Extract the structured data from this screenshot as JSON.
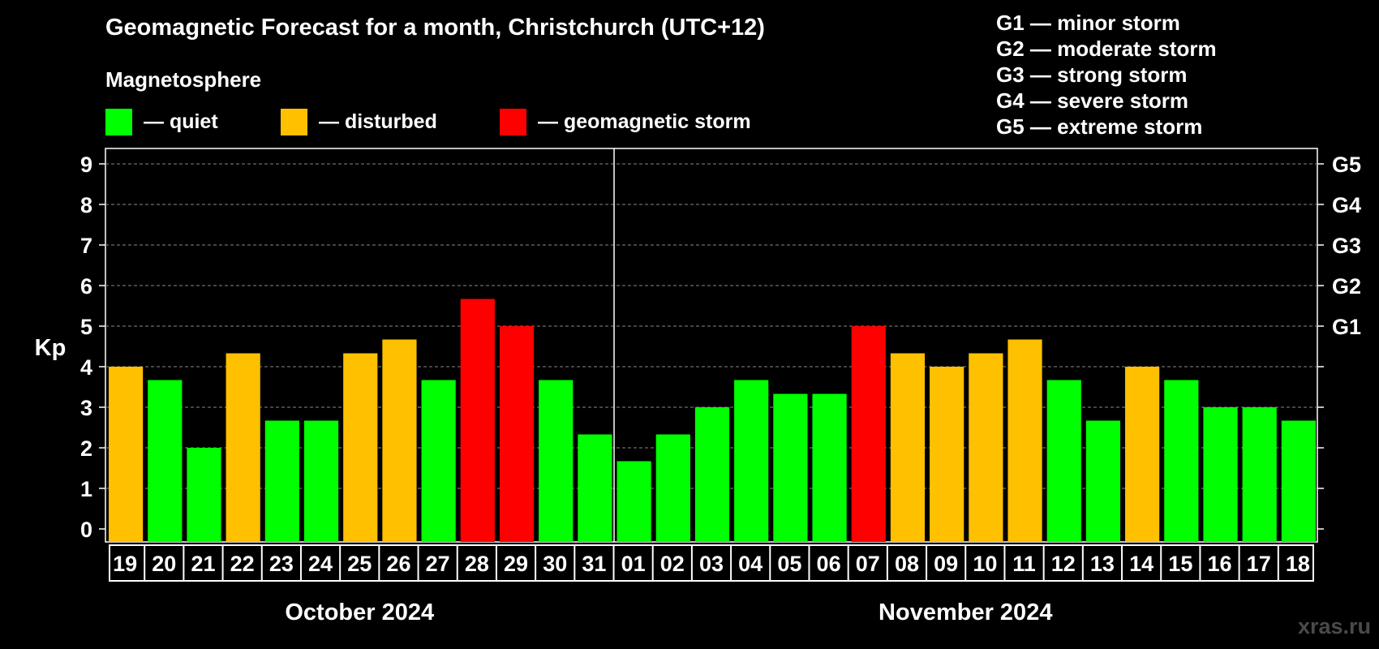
{
  "title": "Geomagnetic Forecast for a month, Christchurch (UTC+12)",
  "legend": {
    "heading": "Magnetosphere",
    "items": [
      {
        "label": "— quiet",
        "color": "#00ff00"
      },
      {
        "label": "— disturbed",
        "color": "#ffc000"
      },
      {
        "label": "— geomagnetic storm",
        "color": "#ff0000"
      }
    ]
  },
  "storm_scale": [
    "G1 — minor storm",
    "G2 — moderate storm",
    "G3 — strong storm",
    "G4 — severe storm",
    "G5 — extreme storm"
  ],
  "watermark": "xras.ru",
  "chart_data": {
    "type": "bar",
    "ylabel": "Kp",
    "ylim": [
      0,
      9
    ],
    "yticks": [
      "0",
      "1",
      "2",
      "3",
      "4",
      "5",
      "6",
      "7",
      "8",
      "9"
    ],
    "right_axis_labels": [
      {
        "value": 5,
        "label": "G1"
      },
      {
        "value": 6,
        "label": "G2"
      },
      {
        "value": 7,
        "label": "G3"
      },
      {
        "value": 8,
        "label": "G4"
      },
      {
        "value": 9,
        "label": "G5"
      }
    ],
    "grid": "dashed horizontal",
    "months": [
      {
        "label": "October 2024",
        "first_index": 0,
        "count": 13
      },
      {
        "label": "November 2024",
        "first_index": 13,
        "count": 18
      }
    ],
    "categories": [
      "19",
      "20",
      "21",
      "22",
      "23",
      "24",
      "25",
      "26",
      "27",
      "28",
      "29",
      "30",
      "31",
      "01",
      "02",
      "03",
      "04",
      "05",
      "06",
      "07",
      "08",
      "09",
      "10",
      "11",
      "12",
      "13",
      "14",
      "15",
      "16",
      "17",
      "18"
    ],
    "values": [
      4.0,
      3.67,
      2.0,
      4.33,
      2.67,
      2.67,
      4.33,
      4.67,
      3.67,
      5.67,
      5.0,
      3.67,
      2.33,
      1.67,
      2.33,
      3.0,
      3.67,
      3.33,
      3.33,
      5.0,
      4.33,
      4.0,
      4.33,
      4.67,
      3.67,
      2.67,
      4.0,
      3.67,
      3.0,
      3.0,
      2.67
    ],
    "status": [
      "disturbed",
      "quiet",
      "quiet",
      "disturbed",
      "quiet",
      "quiet",
      "disturbed",
      "disturbed",
      "quiet",
      "storm",
      "storm",
      "quiet",
      "quiet",
      "quiet",
      "quiet",
      "quiet",
      "quiet",
      "quiet",
      "quiet",
      "storm",
      "disturbed",
      "disturbed",
      "disturbed",
      "disturbed",
      "quiet",
      "quiet",
      "disturbed",
      "quiet",
      "quiet",
      "quiet",
      "quiet"
    ],
    "status_colors": {
      "quiet": "#00ff00",
      "disturbed": "#ffc000",
      "storm": "#ff0000"
    }
  }
}
